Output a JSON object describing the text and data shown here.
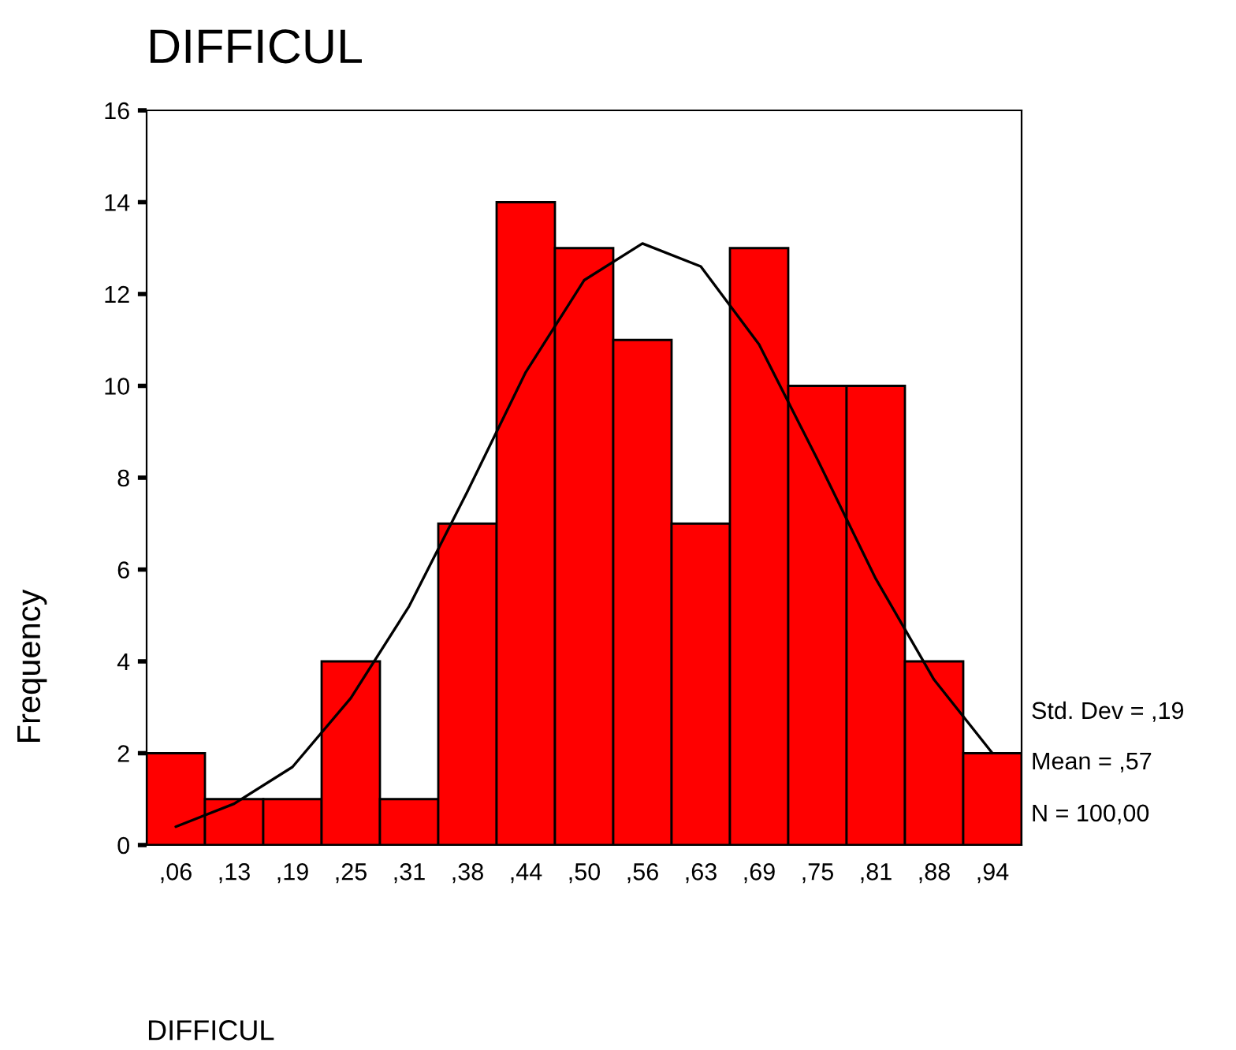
{
  "chart_data": {
    "type": "bar",
    "title": "DIFFICUL",
    "xlabel": "DIFFICUL",
    "ylabel": "Frequency",
    "categories": [
      ",06",
      ",13",
      ",19",
      ",25",
      ",31",
      ",38",
      ",44",
      ",50",
      ",56",
      ",63",
      ",69",
      ",75",
      ",81",
      ",88",
      ",94"
    ],
    "values": [
      2,
      1,
      1,
      4,
      1,
      7,
      14,
      13,
      11,
      7,
      13,
      10,
      10,
      4,
      2
    ],
    "color": "#ff0000",
    "series": [
      {
        "type": "line",
        "color": "#000000",
        "values": [
          0.4,
          0.9,
          1.7,
          3.2,
          5.2,
          7.7,
          10.3,
          12.3,
          13.1,
          12.6,
          10.9,
          8.4,
          5.8,
          3.6,
          2.0
        ]
      }
    ],
    "ylim": [
      0,
      16
    ],
    "yticks": [
      0,
      2,
      4,
      6,
      8,
      10,
      12,
      14,
      16
    ],
    "annotations": [
      "Std. Dev = ,19",
      "Mean = ,57",
      "N = 100,00"
    ],
    "grid": false,
    "legend": false
  }
}
